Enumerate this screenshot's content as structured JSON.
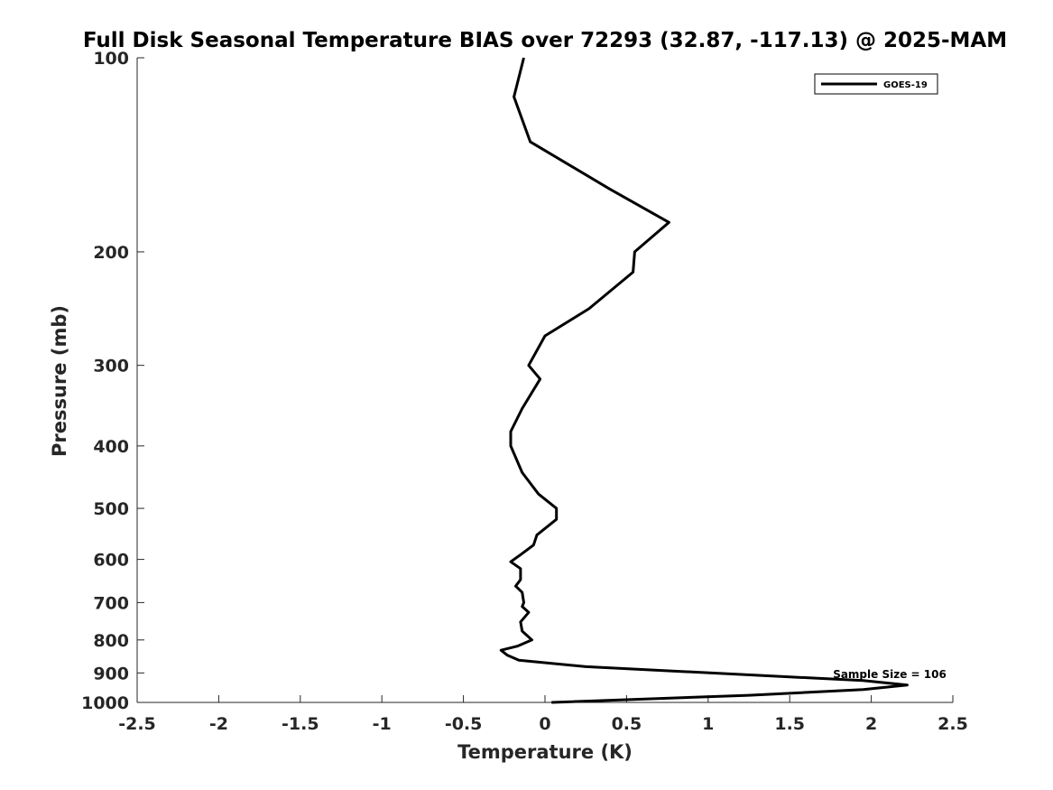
{
  "chart_data": {
    "type": "line",
    "title": "Full Disk Seasonal Temperature BIAS over 72293 (32.87, -117.13) @ 2025-MAM",
    "xlabel": "Temperature (K)",
    "ylabel": "Pressure (mb)",
    "xlim": [
      -2.5,
      2.5
    ],
    "ylim": [
      100,
      1000
    ],
    "y_scale": "log",
    "y_reversed": true,
    "x_ticks": [
      -2.5,
      -2,
      -1.5,
      -1,
      -0.5,
      0,
      0.5,
      1,
      1.5,
      2,
      2.5
    ],
    "x_tick_labels": [
      "-2.5",
      "-2",
      "-1.5",
      "-1",
      "-0.5",
      "0",
      "0.5",
      "1",
      "1.5",
      "2",
      "2.5"
    ],
    "y_ticks": [
      100,
      200,
      300,
      400,
      500,
      600,
      700,
      800,
      900,
      1000
    ],
    "y_tick_labels": [
      "100",
      "200",
      "300",
      "400",
      "500",
      "600",
      "700",
      "800",
      "900",
      "1000"
    ],
    "grid": false,
    "legend_position": "top-right",
    "annotations": [
      {
        "text": "Sample Size = 106",
        "x": 2.1,
        "y": 920
      }
    ],
    "series": [
      {
        "name": "GOES-19",
        "color": "#000000",
        "points": [
          [
            -0.13,
            100
          ],
          [
            -0.19,
            115
          ],
          [
            -0.09,
            135
          ],
          [
            0.4,
            160
          ],
          [
            0.76,
            180
          ],
          [
            0.55,
            200
          ],
          [
            0.54,
            215
          ],
          [
            0.27,
            245
          ],
          [
            0.0,
            270
          ],
          [
            -0.1,
            300
          ],
          [
            -0.03,
            315
          ],
          [
            -0.14,
            350
          ],
          [
            -0.21,
            380
          ],
          [
            -0.21,
            400
          ],
          [
            -0.14,
            440
          ],
          [
            -0.04,
            475
          ],
          [
            0.07,
            500
          ],
          [
            0.07,
            520
          ],
          [
            -0.05,
            550
          ],
          [
            -0.07,
            570
          ],
          [
            -0.15,
            590
          ],
          [
            -0.21,
            605
          ],
          [
            -0.15,
            620
          ],
          [
            -0.15,
            645
          ],
          [
            -0.18,
            660
          ],
          [
            -0.14,
            675
          ],
          [
            -0.13,
            700
          ],
          [
            -0.14,
            710
          ],
          [
            -0.1,
            725
          ],
          [
            -0.15,
            750
          ],
          [
            -0.14,
            775
          ],
          [
            -0.08,
            800
          ],
          [
            -0.17,
            818
          ],
          [
            -0.27,
            830
          ],
          [
            -0.23,
            845
          ],
          [
            -0.16,
            860
          ],
          [
            0.25,
            880
          ],
          [
            1.95,
            925
          ],
          [
            2.22,
            940
          ],
          [
            1.95,
            955
          ],
          [
            1.25,
            975
          ],
          [
            0.04,
            1000
          ]
        ]
      }
    ]
  }
}
